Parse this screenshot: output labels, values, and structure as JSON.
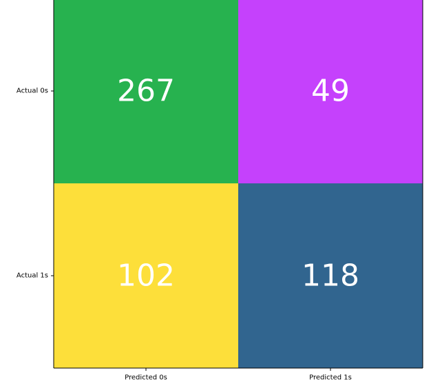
{
  "chart_data": {
    "type": "heatmap",
    "x_categories": [
      "Predicted 0s",
      "Predicted 1s"
    ],
    "y_categories": [
      "Actual 0s",
      "Actual 1s"
    ],
    "values": [
      [
        267,
        49
      ],
      [
        102,
        118
      ]
    ],
    "cell_colors": [
      [
        "#27b24f",
        "#c541fc"
      ],
      [
        "#fddf3a",
        "#31658f"
      ]
    ],
    "label_color": "#ffffff",
    "grid": false,
    "legend": "none"
  }
}
